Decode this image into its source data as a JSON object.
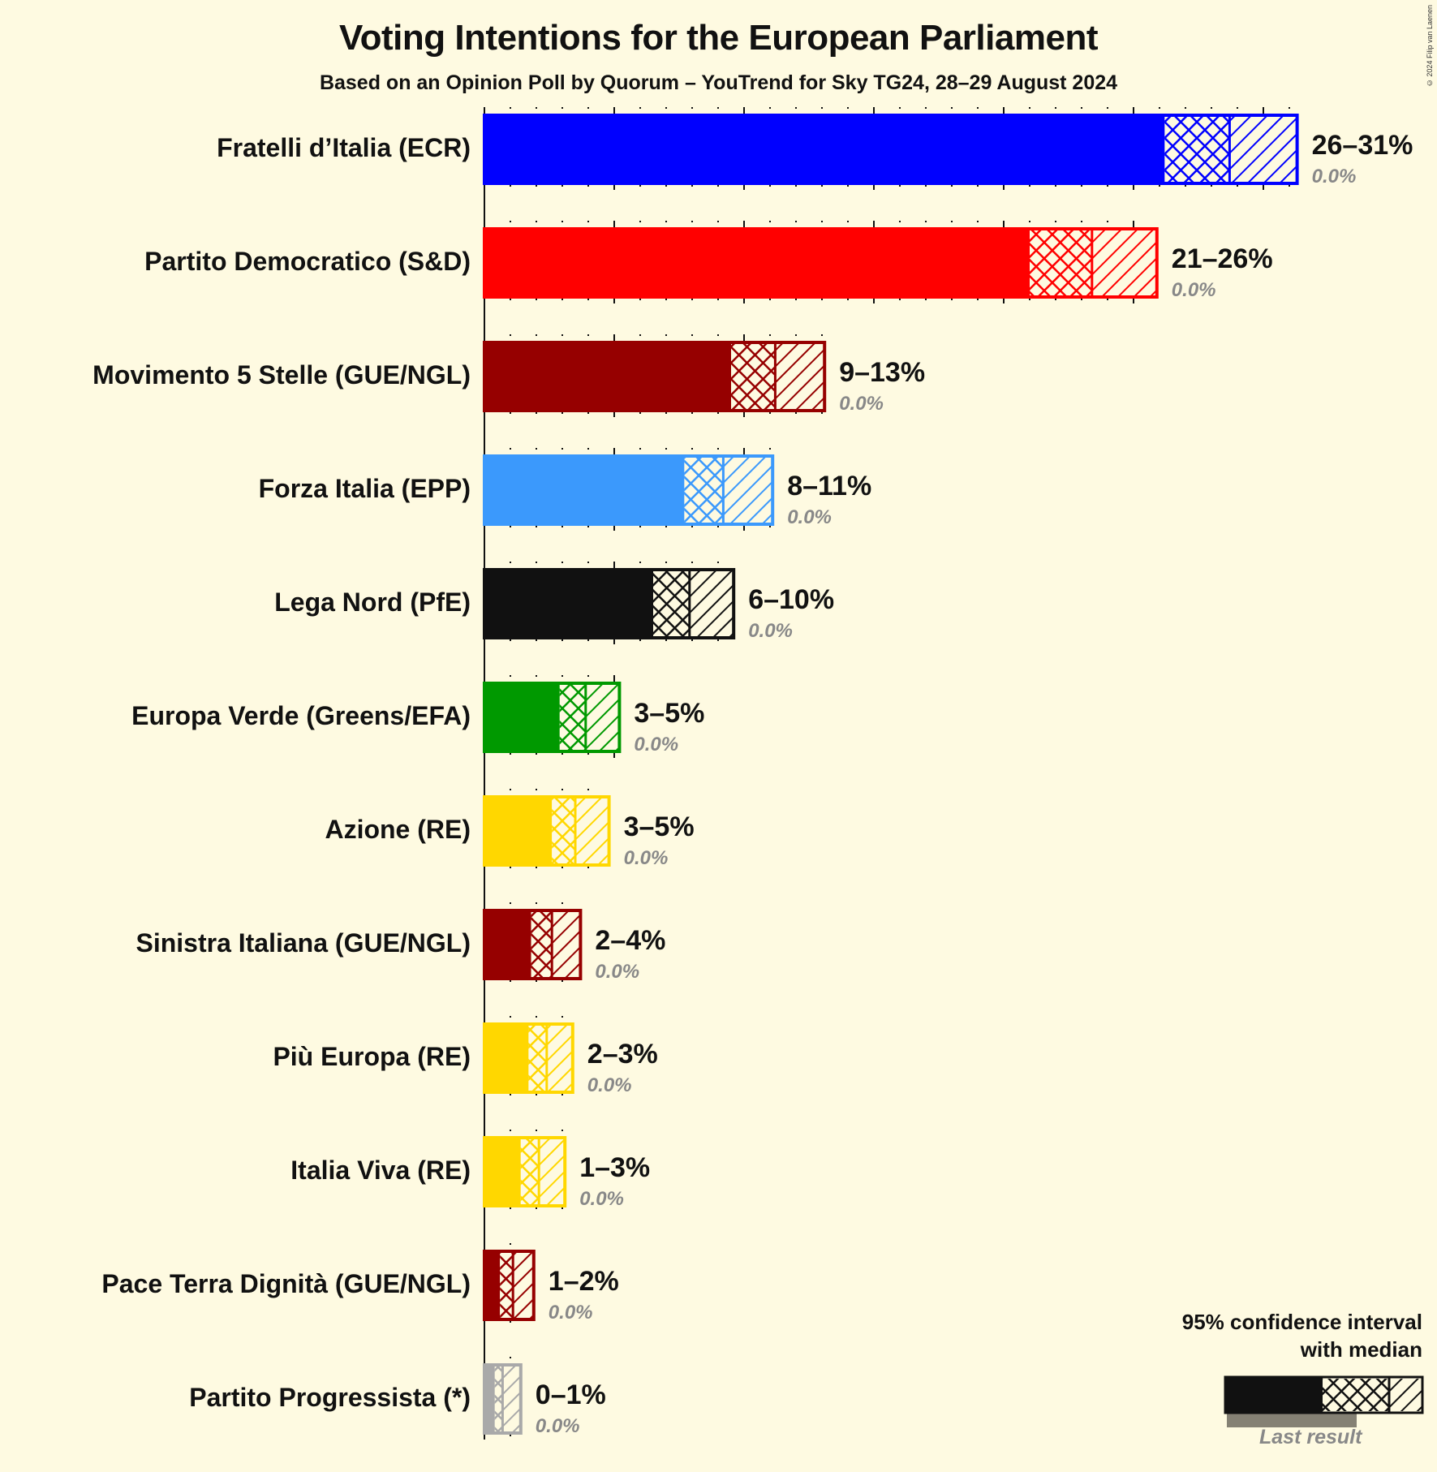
{
  "header": {
    "title": "Voting Intentions for the European Parliament",
    "subtitle": "Based on an Opinion Poll by Quorum – YouTrend for Sky TG24, 28–29 August 2024",
    "copyright": "© 2024 Filip van Laenen"
  },
  "legend": {
    "line1": "95% confidence interval",
    "line2": "with median",
    "last_result": "Last result"
  },
  "chart_data": {
    "type": "bar",
    "orientation": "horizontal",
    "title": "Voting Intentions for the European Parliament",
    "subtitle": "Based on an Opinion Poll by Quorum – YouTrend for Sky TG24, 28–29 August 2024",
    "xlabel": "",
    "ylabel": "",
    "xlim": [
      0,
      32
    ],
    "grid": {
      "major_every": 5,
      "minor_every": 1
    },
    "legend_position": "bottom-right",
    "categories": [
      "Fratelli d’Italia (ECR)",
      "Partito Democratico (S&D)",
      "Movimento 5 Stelle (GUE/NGL)",
      "Forza Italia (EPP)",
      "Lega Nord (PfE)",
      "Europa Verde (Greens/EFA)",
      "Azione (RE)",
      "Sinistra Italiana (GUE/NGL)",
      "Più Europa (RE)",
      "Italia Viva (RE)",
      "Pace Terra Dignità (GUE/NGL)",
      "Partito Progressista (*)"
    ],
    "series": [
      {
        "name": "CI low",
        "values": [
          26.2,
          21.0,
          9.5,
          7.7,
          6.5,
          2.9,
          2.6,
          1.8,
          1.7,
          1.4,
          0.6,
          0.4
        ]
      },
      {
        "name": "Median",
        "values": [
          28.7,
          23.4,
          11.2,
          9.2,
          7.9,
          3.9,
          3.5,
          2.6,
          2.4,
          2.1,
          1.1,
          0.7
        ]
      },
      {
        "name": "CI high",
        "values": [
          31.3,
          25.9,
          13.1,
          11.1,
          9.6,
          5.2,
          4.8,
          3.7,
          3.4,
          3.1,
          1.9,
          1.4
        ]
      },
      {
        "name": "Last result",
        "values": [
          0.0,
          0.0,
          0.0,
          0.0,
          0.0,
          0.0,
          0.0,
          0.0,
          0.0,
          0.0,
          0.0,
          0.0
        ]
      }
    ],
    "range_labels": [
      "26–31%",
      "21–26%",
      "9–13%",
      "8–11%",
      "6–10%",
      "3–5%",
      "3–5%",
      "2–4%",
      "2–3%",
      "1–3%",
      "1–2%",
      "0–1%"
    ],
    "last_labels": [
      "0.0%",
      "0.0%",
      "0.0%",
      "0.0%",
      "0.0%",
      "0.0%",
      "0.0%",
      "0.0%",
      "0.0%",
      "0.0%",
      "0.0%",
      "0.0%"
    ],
    "colors": [
      "#0000FF",
      "#FF0000",
      "#960000",
      "#3B99FC",
      "#111111",
      "#009900",
      "#FFD700",
      "#960000",
      "#FFD700",
      "#FFD700",
      "#960000",
      "#A9A9A9"
    ]
  }
}
